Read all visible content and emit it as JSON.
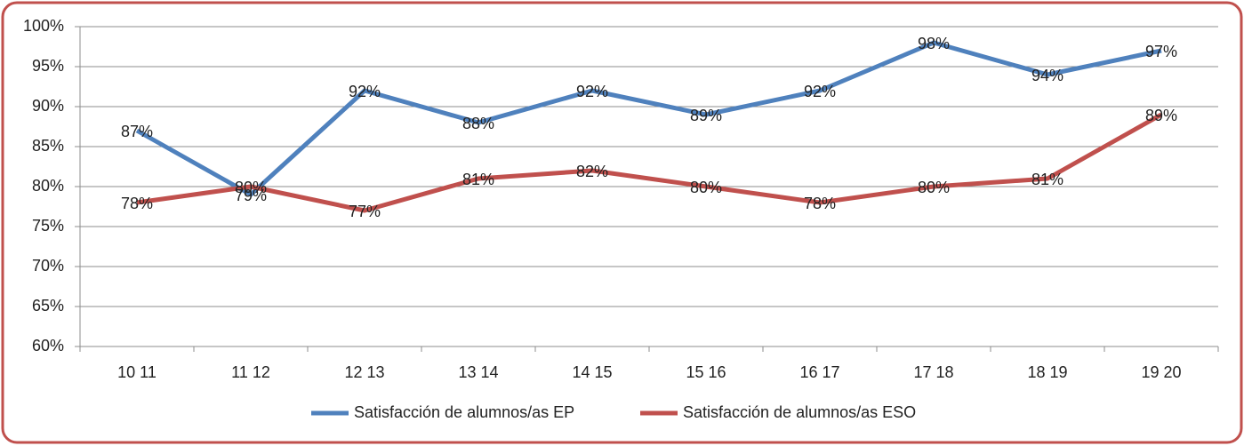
{
  "chart_data": {
    "type": "line",
    "categories": [
      "10 11",
      "11 12",
      "12 13",
      "13 14",
      "14 15",
      "15 16",
      "16 17",
      "17 18",
      "18 19",
      "19 20"
    ],
    "series": [
      {
        "name": "Satisfacción de alumnos/as EP",
        "color": "#4f81bd",
        "values": [
          87,
          79,
          92,
          88,
          92,
          89,
          92,
          98,
          94,
          97
        ],
        "value_labels": [
          "87%",
          "79%",
          "92%",
          "88%",
          "92%",
          "89%",
          "92%",
          "98%",
          "94%",
          "97%"
        ]
      },
      {
        "name": "Satisfacción de alumnos/as ESO",
        "color": "#c0504d",
        "values": [
          78,
          80,
          77,
          81,
          82,
          80,
          78,
          80,
          81,
          89
        ],
        "value_labels": [
          "78%",
          "80%",
          "77%",
          "81%",
          "82%",
          "80%",
          "78%",
          "80%",
          "81%",
          "89%"
        ]
      }
    ],
    "ylim": [
      60,
      100
    ],
    "yticks": [
      {
        "value": 60,
        "label": "60%"
      },
      {
        "value": 65,
        "label": "65%"
      },
      {
        "value": 70,
        "label": "70%"
      },
      {
        "value": 75,
        "label": "75%"
      },
      {
        "value": 80,
        "label": "80%"
      },
      {
        "value": 85,
        "label": "85%"
      },
      {
        "value": 90,
        "label": "90%"
      },
      {
        "value": 95,
        "label": "95%"
      },
      {
        "value": 100,
        "label": "100%"
      }
    ],
    "grid": true,
    "legend": "bottom"
  }
}
